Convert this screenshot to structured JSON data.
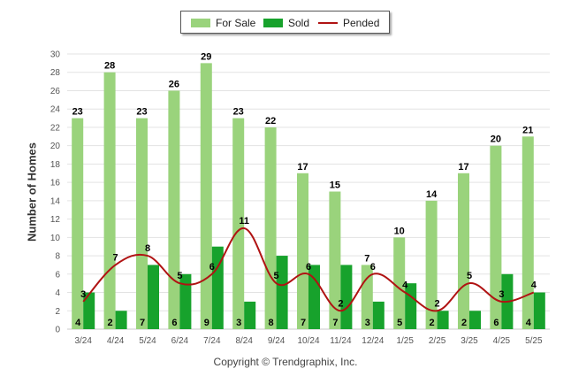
{
  "chart_data": {
    "type": "bar",
    "categories": [
      "3/24",
      "4/24",
      "5/24",
      "6/24",
      "7/24",
      "8/24",
      "9/24",
      "10/24",
      "11/24",
      "12/24",
      "1/25",
      "2/25",
      "3/25",
      "4/25",
      "5/25"
    ],
    "series": [
      {
        "name": "For Sale",
        "type": "bar",
        "color": "#9ad37c",
        "values": [
          23,
          28,
          23,
          26,
          29,
          23,
          22,
          17,
          15,
          7,
          10,
          14,
          17,
          20,
          21
        ]
      },
      {
        "name": "Sold",
        "type": "bar",
        "color": "#17a22c",
        "values": [
          4,
          2,
          7,
          6,
          9,
          3,
          8,
          7,
          7,
          3,
          5,
          2,
          2,
          6,
          4
        ]
      },
      {
        "name": "Pended",
        "type": "line",
        "color": "#b01313",
        "values": [
          3,
          7,
          8,
          5,
          6,
          11,
          5,
          6,
          2,
          6,
          4,
          2,
          5,
          3,
          4
        ]
      }
    ],
    "ylabel": "Number of Homes",
    "xlabel": "",
    "ylim": [
      0,
      30
    ],
    "yticks": [
      0,
      2,
      4,
      6,
      8,
      10,
      12,
      14,
      16,
      18,
      20,
      22,
      24,
      26,
      28,
      30
    ],
    "grid": true,
    "legend_position": "top-center"
  },
  "legend": {
    "for_sale": "For Sale",
    "sold": "Sold",
    "pended": "Pended"
  },
  "footer": {
    "copyright": "Copyright © Trendgraphix, Inc."
  }
}
